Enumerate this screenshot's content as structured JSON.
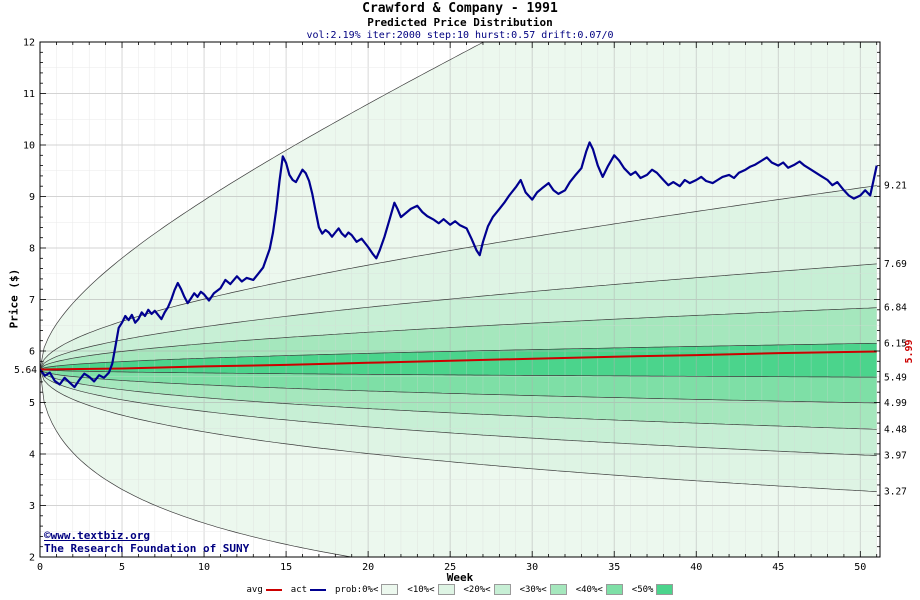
{
  "header": {
    "title": "Crawford & Company - 1991",
    "subtitle": "Predicted Price Distribution",
    "params": "vol:2.19% iter:2000 step:10 hurst:0.57 drift:0.07/0"
  },
  "watermark": {
    "line1": "©www.textbiz.org",
    "line2": "The Research Foundation of SUNY"
  },
  "legend": {
    "items": [
      {
        "label": "avg",
        "swatch": "line",
        "color": "#cc0000"
      },
      {
        "label": "act",
        "swatch": "line",
        "color": "#000090"
      },
      {
        "label": "prob:0%<",
        "swatch": "box",
        "color": "#ecf8ee"
      },
      {
        "label": "<10%<",
        "swatch": "box",
        "color": "#def4e4"
      },
      {
        "label": "<20%<",
        "swatch": "box",
        "color": "#c7efd5"
      },
      {
        "label": "<30%<",
        "swatch": "box",
        "color": "#a5e7bd"
      },
      {
        "label": "<40%<",
        "swatch": "box",
        "color": "#7edfa6"
      },
      {
        "label": "<50%",
        "swatch": "box",
        "color": "#4bd48c"
      }
    ]
  },
  "chart_data": {
    "type": "line",
    "title": "Crawford & Company - 1991",
    "subtitle": "Predicted Price Distribution",
    "xlabel": "Week",
    "ylabel": "Price ($)",
    "xlim": [
      0,
      51.2
    ],
    "ylim": [
      2,
      12
    ],
    "x_ticks": [
      0,
      5,
      10,
      15,
      20,
      25,
      30,
      35,
      40,
      45,
      50
    ],
    "y_ticks": [
      2,
      3,
      4,
      5,
      6,
      7,
      8,
      9,
      10,
      11,
      12
    ],
    "grid": true,
    "start_price": 5.64,
    "start_label": "5.64",
    "band_model": "value(week) = start_price * exp(c * sqrt(week/51))",
    "boundaries": [
      {
        "c": 1.037,
        "label": null
      },
      {
        "c": 0.4905,
        "label": "9.21"
      },
      {
        "c": 0.3101,
        "label": "7.69"
      },
      {
        "c": 0.1929,
        "label": "6.84"
      },
      {
        "c": 0.0866,
        "label": "6.15"
      },
      {
        "c": -0.0266,
        "label": "5.49"
      },
      {
        "c": -0.1224,
        "label": "4.99"
      },
      {
        "c": -0.2303,
        "label": "4.48"
      },
      {
        "c": -0.3513,
        "label": "3.97"
      },
      {
        "c": -0.5452,
        "label": "3.27"
      },
      {
        "c": -1.699,
        "label": null
      }
    ],
    "bands": [
      {
        "name": "prob:0%<",
        "color": "#ecf8ee",
        "upper_c": 1.037,
        "lower_c": -1.699
      },
      {
        "name": "<10%<",
        "color": "#def4e4",
        "upper_c": 0.4905,
        "lower_c": -0.5452
      },
      {
        "name": "<20%<",
        "color": "#c7efd5",
        "upper_c": 0.3101,
        "lower_c": -0.3513
      },
      {
        "name": "<30%<",
        "color": "#a5e7bd",
        "upper_c": 0.1929,
        "lower_c": -0.2303
      },
      {
        "name": "<40%<",
        "color": "#7edfa6",
        "upper_c": 0.0866,
        "lower_c": -0.1224
      },
      {
        "name": "<50%",
        "color": "#4bd48c",
        "upper_c": 0.0866,
        "lower_c": -0.0266
      }
    ],
    "avg": {
      "name": "avg",
      "color": "#cc0000",
      "end_label": "5.99",
      "points": [
        [
          0,
          5.64
        ],
        [
          5,
          5.66
        ],
        [
          10,
          5.7
        ],
        [
          15,
          5.73
        ],
        [
          20,
          5.77
        ],
        [
          25,
          5.81
        ],
        [
          30,
          5.85
        ],
        [
          35,
          5.89
        ],
        [
          40,
          5.92
        ],
        [
          45,
          5.96
        ],
        [
          51,
          5.99
        ]
      ]
    },
    "act": {
      "name": "act",
      "color": "#000090",
      "points": [
        [
          0,
          5.64
        ],
        [
          0.3,
          5.52
        ],
        [
          0.6,
          5.58
        ],
        [
          0.9,
          5.42
        ],
        [
          1.2,
          5.35
        ],
        [
          1.5,
          5.48
        ],
        [
          1.8,
          5.39
        ],
        [
          2.1,
          5.3
        ],
        [
          2.4,
          5.44
        ],
        [
          2.7,
          5.56
        ],
        [
          3,
          5.5
        ],
        [
          3.3,
          5.41
        ],
        [
          3.6,
          5.53
        ],
        [
          3.9,
          5.48
        ],
        [
          4.2,
          5.58
        ],
        [
          4.4,
          5.75
        ],
        [
          4.6,
          6.1
        ],
        [
          4.8,
          6.45
        ],
        [
          5,
          6.55
        ],
        [
          5.2,
          6.68
        ],
        [
          5.4,
          6.6
        ],
        [
          5.6,
          6.7
        ],
        [
          5.8,
          6.55
        ],
        [
          6,
          6.62
        ],
        [
          6.2,
          6.75
        ],
        [
          6.4,
          6.68
        ],
        [
          6.6,
          6.8
        ],
        [
          6.8,
          6.72
        ],
        [
          7,
          6.78
        ],
        [
          7.2,
          6.7
        ],
        [
          7.4,
          6.62
        ],
        [
          7.6,
          6.75
        ],
        [
          7.8,
          6.85
        ],
        [
          8,
          7.0
        ],
        [
          8.2,
          7.18
        ],
        [
          8.4,
          7.32
        ],
        [
          8.6,
          7.2
        ],
        [
          8.8,
          7.05
        ],
        [
          9,
          6.93
        ],
        [
          9.2,
          7.02
        ],
        [
          9.4,
          7.12
        ],
        [
          9.6,
          7.05
        ],
        [
          9.8,
          7.15
        ],
        [
          10,
          7.1
        ],
        [
          10.3,
          6.98
        ],
        [
          10.6,
          7.12
        ],
        [
          11,
          7.22
        ],
        [
          11.3,
          7.38
        ],
        [
          11.6,
          7.3
        ],
        [
          12,
          7.45
        ],
        [
          12.3,
          7.35
        ],
        [
          12.6,
          7.42
        ],
        [
          13,
          7.38
        ],
        [
          13.3,
          7.5
        ],
        [
          13.6,
          7.62
        ],
        [
          14,
          7.98
        ],
        [
          14.2,
          8.3
        ],
        [
          14.4,
          8.75
        ],
        [
          14.6,
          9.3
        ],
        [
          14.8,
          9.78
        ],
        [
          15,
          9.65
        ],
        [
          15.2,
          9.42
        ],
        [
          15.4,
          9.32
        ],
        [
          15.6,
          9.28
        ],
        [
          15.8,
          9.4
        ],
        [
          16,
          9.52
        ],
        [
          16.2,
          9.45
        ],
        [
          16.4,
          9.3
        ],
        [
          16.6,
          9.05
        ],
        [
          16.8,
          8.72
        ],
        [
          17,
          8.4
        ],
        [
          17.2,
          8.28
        ],
        [
          17.4,
          8.35
        ],
        [
          17.6,
          8.3
        ],
        [
          17.8,
          8.22
        ],
        [
          18,
          8.3
        ],
        [
          18.2,
          8.38
        ],
        [
          18.4,
          8.28
        ],
        [
          18.6,
          8.22
        ],
        [
          18.8,
          8.3
        ],
        [
          19,
          8.25
        ],
        [
          19.3,
          8.12
        ],
        [
          19.6,
          8.18
        ],
        [
          20,
          8.02
        ],
        [
          20.3,
          7.88
        ],
        [
          20.5,
          7.8
        ],
        [
          20.7,
          7.95
        ],
        [
          21,
          8.22
        ],
        [
          21.3,
          8.55
        ],
        [
          21.6,
          8.88
        ],
        [
          21.8,
          8.75
        ],
        [
          22,
          8.6
        ],
        [
          22.3,
          8.68
        ],
        [
          22.6,
          8.76
        ],
        [
          23,
          8.82
        ],
        [
          23.3,
          8.7
        ],
        [
          23.6,
          8.62
        ],
        [
          24,
          8.55
        ],
        [
          24.3,
          8.48
        ],
        [
          24.6,
          8.56
        ],
        [
          25,
          8.45
        ],
        [
          25.3,
          8.52
        ],
        [
          25.6,
          8.44
        ],
        [
          26,
          8.38
        ],
        [
          26.3,
          8.18
        ],
        [
          26.6,
          7.96
        ],
        [
          26.8,
          7.86
        ],
        [
          27,
          8.12
        ],
        [
          27.3,
          8.42
        ],
        [
          27.6,
          8.6
        ],
        [
          28,
          8.76
        ],
        [
          28.3,
          8.88
        ],
        [
          28.6,
          9.02
        ],
        [
          29,
          9.18
        ],
        [
          29.3,
          9.32
        ],
        [
          29.6,
          9.08
        ],
        [
          30,
          8.94
        ],
        [
          30.3,
          9.08
        ],
        [
          30.6,
          9.16
        ],
        [
          31,
          9.26
        ],
        [
          31.3,
          9.12
        ],
        [
          31.6,
          9.05
        ],
        [
          32,
          9.12
        ],
        [
          32.3,
          9.28
        ],
        [
          32.6,
          9.4
        ],
        [
          33,
          9.55
        ],
        [
          33.3,
          9.88
        ],
        [
          33.5,
          10.05
        ],
        [
          33.7,
          9.92
        ],
        [
          34,
          9.6
        ],
        [
          34.3,
          9.38
        ],
        [
          34.6,
          9.58
        ],
        [
          35,
          9.8
        ],
        [
          35.3,
          9.7
        ],
        [
          35.6,
          9.55
        ],
        [
          36,
          9.42
        ],
        [
          36.3,
          9.48
        ],
        [
          36.6,
          9.36
        ],
        [
          37,
          9.42
        ],
        [
          37.3,
          9.52
        ],
        [
          37.6,
          9.46
        ],
        [
          38,
          9.32
        ],
        [
          38.3,
          9.22
        ],
        [
          38.6,
          9.28
        ],
        [
          39,
          9.2
        ],
        [
          39.3,
          9.32
        ],
        [
          39.6,
          9.26
        ],
        [
          40,
          9.32
        ],
        [
          40.3,
          9.38
        ],
        [
          40.6,
          9.3
        ],
        [
          41,
          9.26
        ],
        [
          41.3,
          9.32
        ],
        [
          41.6,
          9.38
        ],
        [
          42,
          9.42
        ],
        [
          42.3,
          9.36
        ],
        [
          42.6,
          9.46
        ],
        [
          43,
          9.52
        ],
        [
          43.3,
          9.58
        ],
        [
          43.6,
          9.62
        ],
        [
          44,
          9.7
        ],
        [
          44.3,
          9.76
        ],
        [
          44.6,
          9.66
        ],
        [
          45,
          9.6
        ],
        [
          45.3,
          9.66
        ],
        [
          45.6,
          9.56
        ],
        [
          46,
          9.62
        ],
        [
          46.3,
          9.68
        ],
        [
          46.6,
          9.6
        ],
        [
          47,
          9.52
        ],
        [
          47.3,
          9.46
        ],
        [
          47.6,
          9.4
        ],
        [
          48,
          9.32
        ],
        [
          48.3,
          9.22
        ],
        [
          48.6,
          9.28
        ],
        [
          49,
          9.12
        ],
        [
          49.3,
          9.02
        ],
        [
          49.6,
          8.96
        ],
        [
          50,
          9.02
        ],
        [
          50.3,
          9.12
        ],
        [
          50.6,
          9.02
        ],
        [
          50.8,
          9.3
        ],
        [
          51,
          9.6
        ]
      ]
    }
  }
}
